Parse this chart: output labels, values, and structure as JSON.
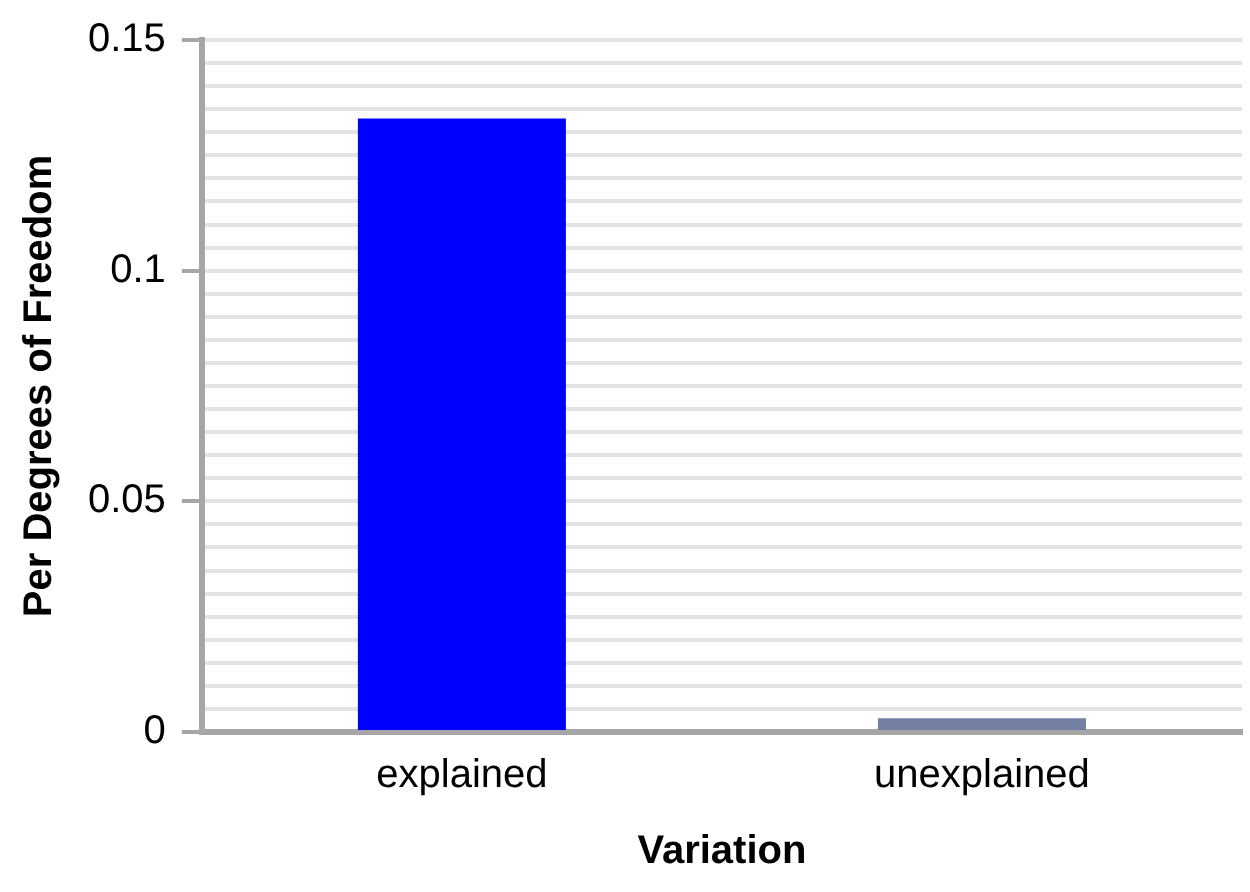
{
  "chart_data": {
    "type": "bar",
    "xlabel": "Variation",
    "ylabel": "Per Degrees of Freedom",
    "categories": [
      "explained",
      "unexplained"
    ],
    "values": [
      0.133,
      0.003
    ],
    "colors": [
      "#0000ff",
      "#7480a3"
    ],
    "ylim": [
      0,
      0.15
    ],
    "yticks": [
      0,
      {
        "value": 0.005,
        "label": null
      },
      {
        "value": 0.01,
        "label": null
      },
      {
        "value": 0.015,
        "label": null
      },
      {
        "value": 0.02,
        "label": null
      },
      {
        "value": 0.025,
        "label": null
      },
      {
        "value": 0.03,
        "label": null
      },
      {
        "value": 0.035,
        "label": null
      },
      {
        "value": 0.04,
        "label": null
      },
      {
        "value": 0.045,
        "label": null
      },
      0.05,
      {
        "value": 0.055,
        "label": null
      },
      {
        "value": 0.06,
        "label": null
      },
      {
        "value": 0.065,
        "label": null
      },
      {
        "value": 0.07,
        "label": null
      },
      {
        "value": 0.075,
        "label": null
      },
      {
        "value": 0.08,
        "label": null
      },
      {
        "value": 0.085,
        "label": null
      },
      {
        "value": 0.09,
        "label": null
      },
      {
        "value": 0.095,
        "label": null
      },
      0.1,
      {
        "value": 0.105,
        "label": null
      },
      {
        "value": 0.11,
        "label": null
      },
      {
        "value": 0.115,
        "label": null
      },
      {
        "value": 0.12,
        "label": null
      },
      {
        "value": 0.125,
        "label": null
      },
      {
        "value": 0.13,
        "label": null
      },
      {
        "value": 0.135,
        "label": null
      },
      {
        "value": 0.14,
        "label": null
      },
      {
        "value": 0.145,
        "label": null
      },
      0.15
    ],
    "grid": "y",
    "legend": false
  }
}
